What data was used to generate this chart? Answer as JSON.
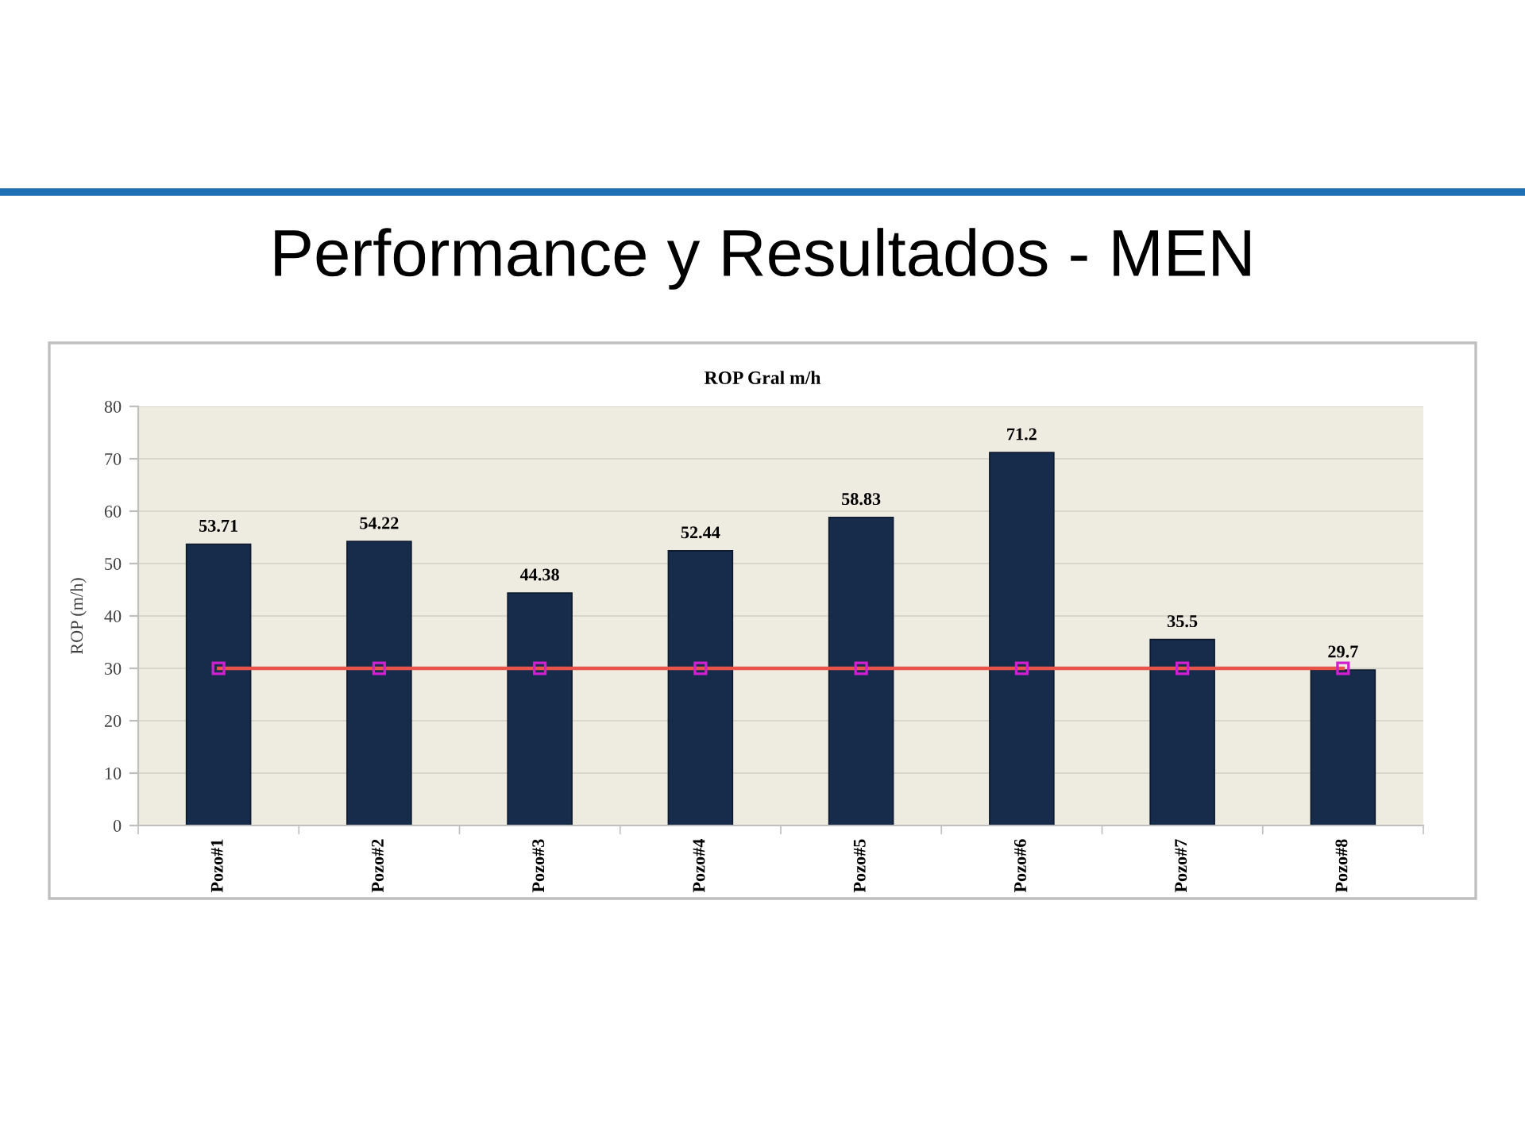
{
  "chart_data": {
    "type": "bar",
    "title": "Performance y Resultados - MEN",
    "subtitle": "ROP Gral m/h",
    "ylabel": "ROP (m/h)",
    "categories": [
      "Pozo#1",
      "Pozo#2",
      "Pozo#3",
      "Pozo#4",
      "Pozo#5",
      "Pozo#6",
      "Pozo#7",
      "Pozo#8"
    ],
    "series": [
      {
        "color": "#172b4a",
        "values": [
          53.71,
          54.22,
          44.38,
          52.44,
          58.83,
          71.2,
          35.5,
          29.7
        ],
        "value_labels": [
          "53.71",
          "54.22",
          "44.38",
          "52.44",
          "58.83",
          "71.2",
          "35.5",
          "29.7"
        ]
      },
      {
        "type": "line",
        "color": "#e8534a",
        "marker": "square",
        "line_style": "solid",
        "values": [
          30,
          30,
          30,
          30,
          30,
          30,
          30,
          30
        ]
      }
    ],
    "ylim": [
      0,
      80
    ],
    "yticks": [
      0,
      10,
      20,
      30,
      40,
      50,
      60,
      70,
      80
    ],
    "grid": "y"
  }
}
